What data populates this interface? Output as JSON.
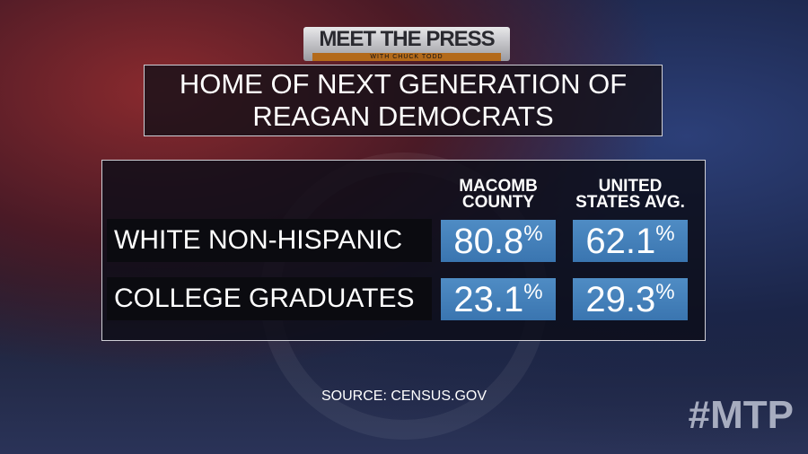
{
  "logo": {
    "text": "MEET THE PRESS",
    "subtitle": "WITH CHUCK TODD"
  },
  "title": {
    "line1": "HOME OF NEXT GENERATION OF",
    "line2": "REAGAN DEMOCRATS"
  },
  "chart_data": {
    "type": "table",
    "columns": [
      {
        "line1": "MACOMB",
        "line2": "COUNTY"
      },
      {
        "line1": "UNITED",
        "line2": "STATES AVG."
      }
    ],
    "rows": [
      {
        "label": "WHITE NON-HISPANIC",
        "values": [
          "80.8",
          "62.1"
        ]
      },
      {
        "label": "COLLEGE GRADUATES",
        "values": [
          "23.1",
          "29.3"
        ]
      }
    ],
    "unit": "%",
    "value_color": "#3f7db8"
  },
  "source": "SOURCE: CENSUS.GOV",
  "hashtag": "#MTP"
}
